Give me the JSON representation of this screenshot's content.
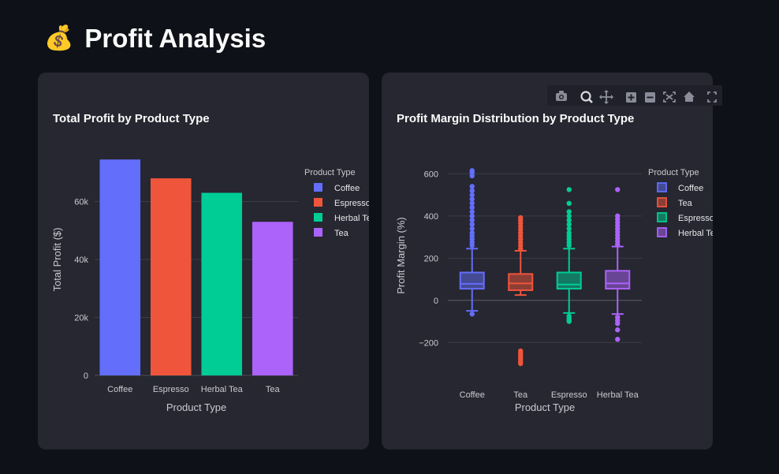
{
  "page": {
    "title": "Profit Analysis",
    "title_icon": "money-bag-icon"
  },
  "colors": {
    "background": "#0e1117",
    "card": "#262730",
    "coffee": "#636efa",
    "espresso": "#ef553b",
    "herbal_tea": "#00cc96",
    "tea": "#ab63fa"
  },
  "modebar": {
    "icons": [
      "camera-icon",
      "zoom-icon",
      "pan-icon",
      "zoom-in-icon",
      "zoom-out-icon",
      "autoscale-icon",
      "reset-axes-icon",
      "fullscreen-icon"
    ]
  },
  "chart_data": [
    {
      "type": "bar",
      "title": "Total Profit by Product Type",
      "xlabel": "Product Type",
      "ylabel": "Total Profit ($)",
      "categories": [
        "Coffee",
        "Espresso",
        "Herbal Tea",
        "Tea"
      ],
      "values": [
        74500,
        68000,
        63000,
        53000
      ],
      "colors": [
        "#636efa",
        "#ef553b",
        "#00cc96",
        "#ab63fa"
      ],
      "ylim": [
        0,
        80000
      ],
      "yticks": [
        0,
        20000,
        40000,
        60000
      ],
      "ytick_labels": [
        "0",
        "20k",
        "40k",
        "60k"
      ],
      "legend": {
        "title": "Product Type",
        "placement": "top-right",
        "items": [
          {
            "label": "Coffee",
            "color": "#636efa"
          },
          {
            "label": "Espresso",
            "color": "#ef553b"
          },
          {
            "label": "Herbal Tea",
            "color": "#00cc96"
          },
          {
            "label": "Tea",
            "color": "#ab63fa"
          }
        ]
      },
      "grid": true
    },
    {
      "type": "box",
      "title": "Profit Margin Distribution by Product Type",
      "xlabel": "Product Type",
      "ylabel": "Profit Margin (%)",
      "categories": [
        "Coffee",
        "Tea",
        "Espresso",
        "Herbal Tea"
      ],
      "ylim": [
        -300,
        650
      ],
      "yticks": [
        -200,
        0,
        200,
        400,
        600
      ],
      "ytick_labels": [
        "−200",
        "0",
        "200",
        "400",
        "600"
      ],
      "series": [
        {
          "name": "Coffee",
          "color": "#636efa",
          "q1": 55,
          "median": 78,
          "q3": 132,
          "whisker_low": -50,
          "whisker_high": 245,
          "outliers": [
            -65,
            260,
            275,
            290,
            305,
            320,
            340,
            360,
            380,
            400,
            420,
            440,
            460,
            480,
            500,
            520,
            540,
            590,
            605,
            615
          ]
        },
        {
          "name": "Tea",
          "color": "#ef553b",
          "q1": 48,
          "median": 80,
          "q3": 125,
          "whisker_low": 25,
          "whisker_high": 235,
          "outliers": [
            -240,
            -250,
            -260,
            -270,
            -280,
            -290,
            -300,
            245,
            260,
            275,
            290,
            305,
            320,
            335,
            350,
            365,
            380,
            392
          ]
        },
        {
          "name": "Espresso",
          "color": "#00cc96",
          "q1": 55,
          "median": 75,
          "q3": 132,
          "whisker_low": -60,
          "whisker_high": 245,
          "outliers": [
            -75,
            -85,
            -95,
            -100,
            260,
            275,
            290,
            305,
            320,
            340,
            360,
            380,
            400,
            420,
            460,
            525
          ]
        },
        {
          "name": "Herbal Tea",
          "color": "#ab63fa",
          "q1": 55,
          "median": 80,
          "q3": 140,
          "whisker_low": -65,
          "whisker_high": 255,
          "outliers": [
            -80,
            -95,
            -110,
            -140,
            -185,
            265,
            280,
            295,
            310,
            325,
            340,
            355,
            370,
            385,
            400,
            525
          ]
        }
      ],
      "legend": {
        "title": "Product Type",
        "placement": "top-right",
        "items": [
          {
            "label": "Coffee",
            "color": "#636efa"
          },
          {
            "label": "Tea",
            "color": "#ef553b"
          },
          {
            "label": "Espresso",
            "color": "#00cc96"
          },
          {
            "label": "Herbal Tea",
            "color": "#ab63fa"
          }
        ]
      },
      "grid": true
    }
  ]
}
